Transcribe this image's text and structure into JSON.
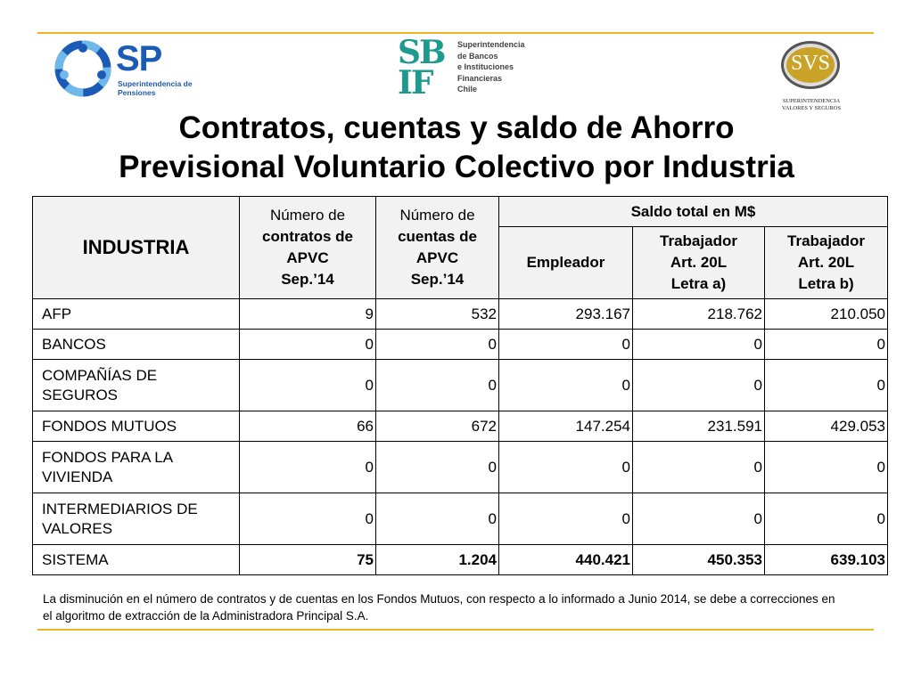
{
  "logos": {
    "sp": {
      "mark": "SP",
      "subtitle_line1": "Superintendencia de",
      "subtitle_line2": "Pensiones"
    },
    "sbif": {
      "mark": "SBIF",
      "lines": [
        "Superintendencia",
        "de Bancos",
        "e Instituciones",
        "Financieras",
        "Chile"
      ]
    },
    "svs": {
      "mark": "SVS",
      "line1": "SUPERINTENDENCIA",
      "line2": "VALORES Y SEGUROS"
    }
  },
  "title_line1": "Contratos, cuentas y saldo de Ahorro",
  "title_line2": "Previsional Voluntario Colectivo por Industria",
  "table": {
    "headers": {
      "industria": "INDUSTRIA",
      "contratos": [
        "Número de",
        "contratos de",
        "APVC",
        "Sep.’14"
      ],
      "cuentas": [
        "Número de",
        "cuentas de",
        "APVC",
        "Sep.’14"
      ],
      "saldo": "Saldo total en M$",
      "empleador": "Empleador",
      "trab_a": [
        "Trabajador",
        "Art. 20L",
        "Letra a)"
      ],
      "trab_b": [
        "Trabajador",
        "Art. 20L",
        "Letra b)"
      ]
    },
    "rows": [
      {
        "name": [
          "AFP"
        ],
        "values": [
          "9",
          "532",
          "293.167",
          "218.762",
          "210.050"
        ]
      },
      {
        "name": [
          "BANCOS"
        ],
        "values": [
          "0",
          "0",
          "0",
          "0",
          "0"
        ]
      },
      {
        "name": [
          "COMPAÑÍAS DE",
          "SEGUROS"
        ],
        "values": [
          "0",
          "0",
          "0",
          "0",
          "0"
        ]
      },
      {
        "name": [
          "FONDOS MUTUOS"
        ],
        "values": [
          "66",
          "672",
          "147.254",
          "231.591",
          "429.053"
        ]
      },
      {
        "name": [
          "FONDOS PARA LA",
          "VIVIENDA"
        ],
        "values": [
          "0",
          "0",
          "0",
          "0",
          "0"
        ]
      },
      {
        "name": [
          "INTERMEDIARIOS DE",
          "VALORES"
        ],
        "values": [
          "0",
          "0",
          "0",
          "0",
          "0"
        ]
      },
      {
        "name": [
          "SISTEMA"
        ],
        "values": [
          "75",
          "1.204",
          "440.421",
          "450.353",
          "639.103"
        ]
      }
    ]
  },
  "note": "La disminución en el número de contratos y de cuentas en los Fondos Mutuos, con respecto a lo informado a Junio 2014,  se debe a correcciones en el algoritmo de extracción de la Administradora Principal S.A.",
  "colors": {
    "accent_rule": "#f0b323",
    "sp_blue": "#1c5bb5",
    "sbif_teal": "#1f9a8f",
    "svs_gold": "#c9a227"
  }
}
